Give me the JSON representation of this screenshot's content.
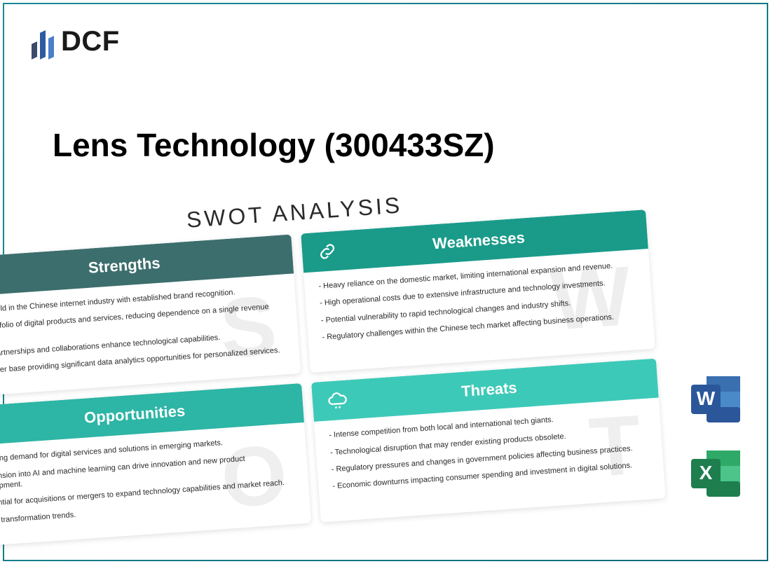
{
  "logo": {
    "text": "DCF",
    "bar_colors": [
      "#3b4a6b",
      "#2d5aa0",
      "#4a7fc9"
    ],
    "bar_heights": [
      22,
      38,
      30
    ]
  },
  "title": "Lens Technology (300433SZ)",
  "swot": {
    "heading": "SWOT ANALYSIS",
    "cards": [
      {
        "key": "strengths",
        "label": "Strengths",
        "letter": "S",
        "header_bg": "#3d6e6e",
        "icon": "trophy",
        "items": [
          "ong foothold in the Chinese internet industry with established brand recognition.",
          "verse portfolio of digital products and services, reducing dependence on a single revenue stream.",
          "rategic partnerships and collaborations enhance technological capabilities.",
          "robust user base providing significant data analytics opportunities for personalized services."
        ]
      },
      {
        "key": "weaknesses",
        "label": "Weaknesses",
        "letter": "W",
        "header_bg": "#1a9b8a",
        "icon": "link",
        "items": [
          "- Heavy reliance on the domestic market, limiting international expansion and revenue.",
          "- High operational costs due to extensive infrastructure and technology investments.",
          "- Potential vulnerability to rapid technological changes and industry shifts.",
          "- Regulatory challenges within the Chinese tech market affecting business operations."
        ]
      },
      {
        "key": "opportunities",
        "label": "Opportunities",
        "letter": "O",
        "header_bg": "#2db5a5",
        "icon": "chart",
        "items": [
          "- Growing demand for digital services and solutions in emerging markets.",
          "- Expansion into AI and machine learning can drive innovation and new product development.",
          "- Potential for acquisitions or mergers to expand technology capabilities and market reach.",
          "digital transformation trends."
        ]
      },
      {
        "key": "threats",
        "label": "Threats",
        "letter": "T",
        "header_bg": "#3dc9b8",
        "icon": "cloud",
        "items": [
          "- Intense competition from both local and international tech giants.",
          "- Technological disruption that may render existing products obsolete.",
          "- Regulatory pressures and changes in government policies affecting business practices.",
          "- Economic downturns impacting consumer spending and investment in digital solutions."
        ]
      }
    ]
  },
  "files": {
    "word": {
      "letter": "W",
      "primary": "#2b579a",
      "light": "#4a8ac9",
      "mid": "#3a6fb0"
    },
    "excel": {
      "letter": "X",
      "primary": "#1e7e4e",
      "light": "#4cc48a",
      "mid": "#2fa968"
    }
  },
  "colors": {
    "frame_start": "#1a8a9a",
    "frame_end": "#0d6b7a",
    "text": "#000000",
    "bg": "#ffffff"
  }
}
